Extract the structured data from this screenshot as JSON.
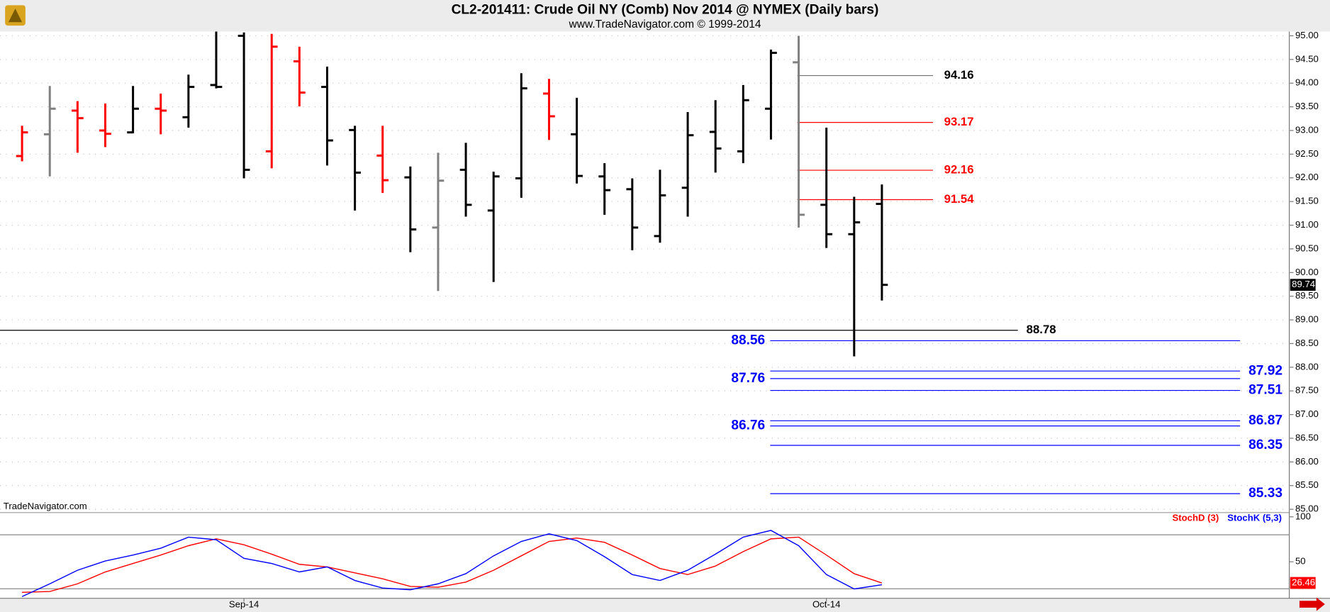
{
  "chart_data": [
    {
      "type": "ohlc",
      "title": "CL2-201411:  Crude Oil NY (Comb) Nov 2014 @ NYMEX  (Daily bars)",
      "subtitle": "www.TradeNavigator.com © 1999-2014",
      "watermark": "TradeNavigator.com",
      "categories": [
        null,
        null,
        null,
        null,
        null,
        null,
        null,
        null,
        "Sep-14",
        null,
        null,
        null,
        null,
        null,
        null,
        null,
        null,
        null,
        null,
        null,
        null,
        null,
        null,
        null,
        null,
        null,
        null,
        null,
        null,
        "Oct-14",
        null,
        null
      ],
      "open": [
        92.46,
        92.92,
        93.42,
        93.0,
        92.96,
        93.46,
        93.28,
        93.96,
        95.0,
        92.56,
        94.46,
        93.92,
        93.01,
        92.47,
        92.01,
        90.95,
        92.17,
        91.31,
        91.99,
        93.78,
        92.92,
        92.03,
        91.76,
        90.77,
        91.79,
        92.97,
        92.56,
        93.46,
        94.44,
        91.43,
        90.81,
        91.45
      ],
      "high": [
        93.1,
        93.94,
        93.62,
        93.57,
        93.94,
        93.78,
        94.18,
        95.09,
        95.07,
        95.04,
        94.77,
        94.35,
        93.1,
        93.1,
        92.24,
        92.53,
        92.74,
        92.13,
        94.21,
        94.09,
        93.69,
        92.31,
        91.99,
        92.17,
        93.39,
        93.64,
        93.96,
        94.71,
        95.0,
        93.06,
        91.6,
        91.86
      ],
      "low": [
        92.35,
        92.03,
        92.53,
        92.65,
        92.94,
        92.92,
        93.06,
        93.89,
        91.99,
        92.2,
        93.51,
        92.26,
        91.31,
        91.68,
        90.43,
        89.61,
        91.18,
        89.8,
        91.58,
        92.8,
        91.88,
        91.22,
        90.47,
        90.63,
        91.18,
        92.11,
        92.31,
        92.81,
        90.95,
        90.52,
        88.23,
        89.41
      ],
      "close": [
        92.96,
        93.46,
        93.26,
        92.93,
        93.46,
        93.42,
        93.92,
        93.92,
        92.17,
        94.77,
        93.8,
        92.79,
        92.11,
        91.95,
        90.91,
        91.94,
        91.43,
        92.03,
        93.89,
        93.3,
        92.04,
        91.74,
        90.95,
        91.63,
        92.9,
        92.62,
        93.64,
        94.64,
        91.22,
        90.81,
        91.06,
        89.74
      ],
      "colors": [
        "#ff0000",
        "#808080",
        "#ff0000",
        "#ff0000",
        "#000000",
        "#ff0000",
        "#000000",
        "#000000",
        "#000000",
        "#ff0000",
        "#ff0000",
        "#000000",
        "#000000",
        "#ff0000",
        "#000000",
        "#808080",
        "#000000",
        "#000000",
        "#000000",
        "#ff0000",
        "#000000",
        "#000000",
        "#000000",
        "#000000",
        "#000000",
        "#000000",
        "#000000",
        "#000000",
        "#808080",
        "#000000",
        "#000000",
        "#000000"
      ],
      "levels": [
        {
          "value": 94.16,
          "color": "#707070",
          "label_color": "#000000"
        },
        {
          "value": 93.17,
          "color": "#ff0000",
          "label_color": "#ff0000"
        },
        {
          "value": 92.16,
          "color": "#ff0000",
          "label_color": "#ff0000"
        },
        {
          "value": 91.54,
          "color": "#ff0000",
          "label_color": "#ff0000"
        },
        {
          "value": 88.78,
          "color": "#000000",
          "label_color": "#000000"
        },
        {
          "value": 88.56,
          "color": "#0000ff",
          "label_color": "#0000ff"
        },
        {
          "value": 87.92,
          "color": "#0000ff",
          "label_color": "#0000ff"
        },
        {
          "value": 87.76,
          "color": "#0000ff",
          "label_color": "#0000ff"
        },
        {
          "value": 87.51,
          "color": "#0000ff",
          "label_color": "#0000ff"
        },
        {
          "value": 86.87,
          "color": "#0000ff",
          "label_color": "#0000ff"
        },
        {
          "value": 86.76,
          "color": "#0000ff",
          "label_color": "#0000ff"
        },
        {
          "value": 86.35,
          "color": "#0000ff",
          "label_color": "#0000ff"
        },
        {
          "value": 85.33,
          "color": "#0000ff",
          "label_color": "#0000ff"
        }
      ],
      "ylim": [
        84.93,
        95.09
      ],
      "yticks": [
        {
          "value": 85,
          "label": "85.00"
        },
        {
          "value": 85.5,
          "label": "85.50"
        },
        {
          "value": 86,
          "label": "86.00"
        },
        {
          "value": 86.5,
          "label": "86.50"
        },
        {
          "value": 87,
          "label": "87.00"
        },
        {
          "value": 87.5,
          "label": "87.50"
        },
        {
          "value": 88,
          "label": "88.00"
        },
        {
          "value": 88.5,
          "label": "88.50"
        },
        {
          "value": 89,
          "label": "89.00"
        },
        {
          "value": 89.5,
          "label": "89.50"
        },
        {
          "value": 90,
          "label": "90.00"
        },
        {
          "value": 90.5,
          "label": "90.50"
        },
        {
          "value": 91,
          "label": "91.00"
        },
        {
          "value": 91.5,
          "label": "91.50"
        },
        {
          "value": 92,
          "label": "92.00"
        },
        {
          "value": 92.5,
          "label": "92.50"
        },
        {
          "value": 93,
          "label": "93.00"
        },
        {
          "value": 93.5,
          "label": "93.50"
        },
        {
          "value": 94,
          "label": "94.00"
        },
        {
          "value": 94.5,
          "label": "94.50"
        },
        {
          "value": 95,
          "label": "95.00"
        }
      ],
      "grid": true
    },
    {
      "type": "line",
      "series": [
        {
          "name": "StochD (3)",
          "color": "#ff0000",
          "values": [
            16.0,
            17.0,
            25.5,
            38.7,
            48.1,
            57.5,
            67.9,
            75.5,
            68.9,
            58.5,
            47.2,
            44.3,
            37.7,
            31.1,
            22.6,
            21.7,
            27.4,
            40.6,
            56.6,
            72.6,
            76.4,
            71.7,
            57.5,
            42.5,
            35.8,
            45.3,
            61.3,
            75.5,
            77.4,
            57.5,
            36.8,
            26.46
          ]
        },
        {
          "name": "StochK (5,3)",
          "color": "#0000ff",
          "values": [
            11.3,
            25.5,
            40.6,
            50.9,
            57.5,
            65.1,
            77.4,
            74.5,
            53.8,
            48.1,
            38.7,
            44.3,
            29.2,
            20.8,
            18.9,
            25.5,
            36.8,
            56.6,
            72.6,
            81.1,
            73.6,
            55.7,
            35.8,
            29.2,
            40.6,
            58.5,
            77.4,
            84.9,
            67.9,
            35.8,
            19.8,
            24.5
          ]
        }
      ],
      "levels": [
        20,
        80
      ],
      "ylim": [
        9.4,
        104.7
      ],
      "yticks": [
        50,
        100
      ]
    }
  ]
}
